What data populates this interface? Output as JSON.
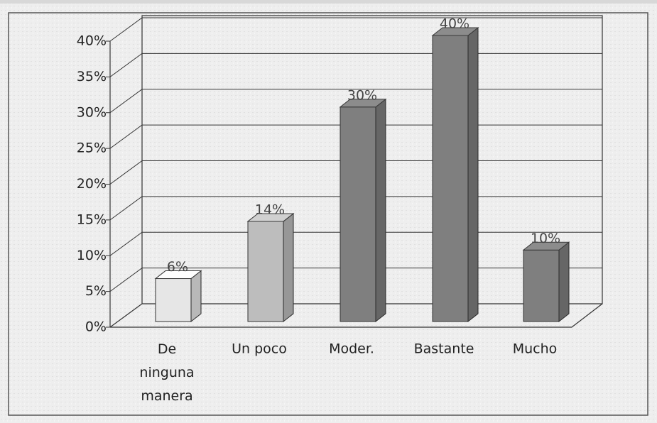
{
  "chart_data": {
    "type": "bar3d",
    "categories": [
      "De ninguna manera",
      "Un poco",
      "Moder.",
      "Bastante",
      "Mucho"
    ],
    "values": [
      6,
      14,
      30,
      40,
      10
    ],
    "value_labels": [
      "6%",
      "14%",
      "30%",
      "40%",
      "10%"
    ],
    "colors": [
      "#e6e6e6",
      "#bdbdbd",
      "#7f7f7f",
      "#7f7f7f",
      "#7f7f7f"
    ],
    "ylim": [
      0,
      40
    ],
    "yticks": [
      {
        "value": 0,
        "label": "0%"
      },
      {
        "value": 5,
        "label": "5%"
      },
      {
        "value": 10,
        "label": "10%"
      },
      {
        "value": 15,
        "label": "15%"
      },
      {
        "value": 20,
        "label": "20%"
      },
      {
        "value": 25,
        "label": "25%"
      },
      {
        "value": 30,
        "label": "30%"
      },
      {
        "value": 35,
        "label": "35%"
      },
      {
        "value": 40,
        "label": "40%"
      }
    ],
    "grid": true
  }
}
